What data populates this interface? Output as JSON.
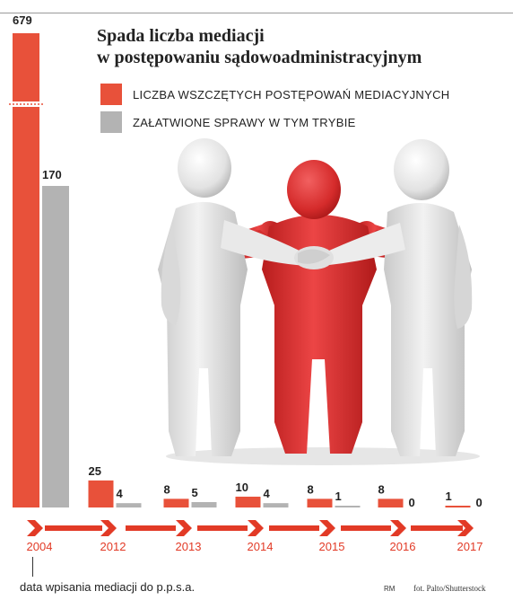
{
  "chart_data": {
    "type": "bar",
    "title": "Spada liczba mediacji\nw postępowaniu sądowoadministracyjnym",
    "categories": [
      "2004",
      "2012",
      "2013",
      "2014",
      "2015",
      "2016",
      "2017"
    ],
    "series": [
      {
        "name": "LICZBA WSZCZĘTYCH POSTĘPOWAŃ MEDIACYJNYCH",
        "color": "#e8513a",
        "values": [
          679,
          25,
          8,
          10,
          8,
          8,
          1
        ]
      },
      {
        "name": "ZAŁATWIONE SPRAWY W TYM TRYBIE",
        "color": "#b3b3b3",
        "values": [
          170,
          4,
          5,
          4,
          1,
          0,
          0
        ]
      }
    ],
    "axis_break": true,
    "legend_position": "top",
    "timeline_color": "#e23a26"
  },
  "footnote": "data wpisania mediacji do p.p.s.a.",
  "credits": {
    "author": "RM",
    "photo": "fot. Palto/Shutterstock"
  },
  "illustration": "three-figures-handshake-icon"
}
